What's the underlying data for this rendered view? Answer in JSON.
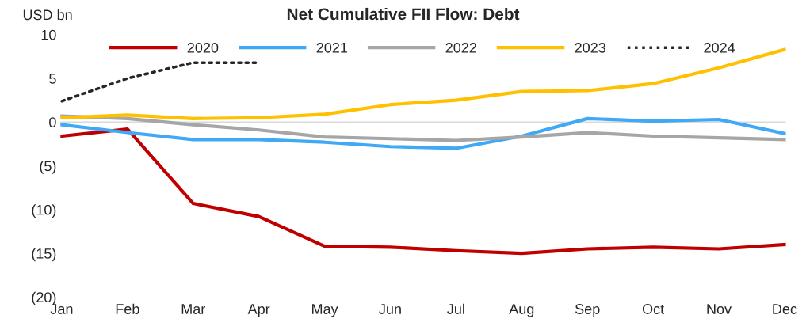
{
  "chart_data": {
    "type": "line",
    "title": "Net Cumulative FII Flow: Debt",
    "ylabel": "USD bn",
    "categories": [
      "Jan",
      "Feb",
      "Mar",
      "Apr",
      "May",
      "Jun",
      "Jul",
      "Aug",
      "Sep",
      "Oct",
      "Nov",
      "Dec"
    ],
    "series": [
      {
        "name": "2020",
        "color": "#c00000",
        "values": [
          -1.6,
          -0.8,
          -9.3,
          -10.8,
          -14.2,
          -14.3,
          -14.7,
          -15.0,
          -14.5,
          -14.3,
          -14.5,
          -14.0
        ]
      },
      {
        "name": "2021",
        "color": "#3fa9f5",
        "values": [
          -0.3,
          -1.2,
          -2.0,
          -2.0,
          -2.3,
          -2.8,
          -3.0,
          -1.6,
          0.4,
          0.1,
          0.3,
          -1.3
        ]
      },
      {
        "name": "2022",
        "color": "#a6a6a6",
        "values": [
          0.7,
          0.4,
          -0.3,
          -0.9,
          -1.7,
          -1.9,
          -2.1,
          -1.7,
          -1.2,
          -1.6,
          -1.8,
          -2.0
        ]
      },
      {
        "name": "2023",
        "color": "#ffc000",
        "values": [
          0.5,
          0.8,
          0.4,
          0.5,
          0.9,
          2.0,
          2.5,
          3.5,
          3.6,
          4.4,
          6.2,
          8.3
        ]
      },
      {
        "name": "2024",
        "color": "#262626",
        "line_style": "dotted",
        "values": [
          2.4,
          5.0,
          6.8,
          6.8,
          null,
          null,
          null,
          null,
          null,
          null,
          null,
          null
        ]
      }
    ],
    "ylim": [
      -20,
      10
    ],
    "yticks": [
      {
        "value": -20,
        "label": "(20)"
      },
      {
        "value": -15,
        "label": "(15)"
      },
      {
        "value": -10,
        "label": "(10)"
      },
      {
        "value": -5,
        "label": "(5)"
      },
      0,
      5,
      10
    ],
    "ref_lines": [
      {
        "axis": "y",
        "value": 0,
        "color": "#d9d9d9"
      }
    ],
    "legend": "top",
    "grid": false,
    "marker": "none",
    "line_style": "solid"
  }
}
